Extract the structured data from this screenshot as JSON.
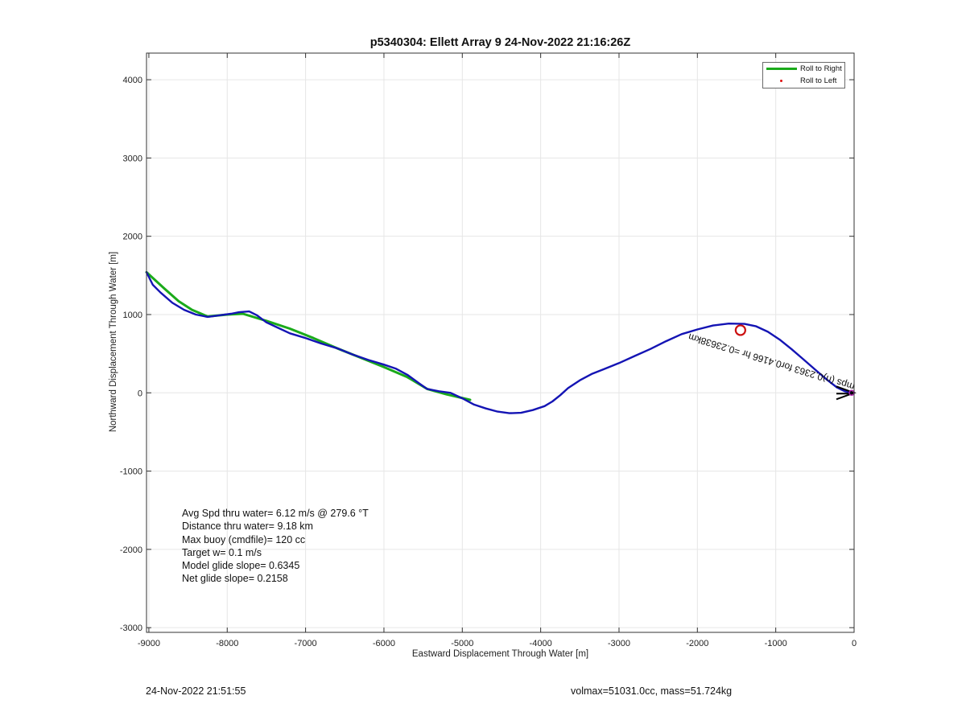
{
  "chart_data": {
    "type": "line",
    "title": "p5340304: Ellett Array 9 24-Nov-2022 21:16:26Z",
    "xlabel": "Eastward Displacement Through Water [m]",
    "ylabel": "Northward Displacement Through Water [m]",
    "xlim": [
      -9030,
      0
    ],
    "ylim": [
      -3060,
      4340
    ],
    "xticks": [
      -9000,
      -8000,
      -7000,
      -6000,
      -5000,
      -4000,
      -3000,
      -2000,
      -1000,
      0
    ],
    "yticks": [
      -3000,
      -2000,
      -1000,
      0,
      1000,
      2000,
      3000,
      4000
    ],
    "grid": true,
    "legend_position": "top-right",
    "legend": [
      {
        "label": "Roll to Right",
        "color": "#1aaa1a",
        "marker": "line"
      },
      {
        "label": "Roll to Left",
        "color": "#e01010",
        "marker": "dot"
      }
    ],
    "series": [
      {
        "name": "Roll to Right",
        "color": "#1aaa1a",
        "x": [
          -9030,
          -8800,
          -8620,
          -8450,
          -8250,
          -8000,
          -7800,
          -7500,
          -7200,
          -6900,
          -6600,
          -6300,
          -6000,
          -5700,
          -5450,
          -5200,
          -4900
        ],
        "y": [
          1540,
          1330,
          1170,
          1060,
          975,
          1000,
          1010,
          920,
          820,
          700,
          570,
          450,
          330,
          200,
          50,
          -20,
          -90
        ]
      },
      {
        "name": "track",
        "color": "#1414b4",
        "x": [
          -9030,
          -8950,
          -8850,
          -8700,
          -8550,
          -8400,
          -8250,
          -8100,
          -7950,
          -7850,
          -7720,
          -7620,
          -7500,
          -7350,
          -7200,
          -7000,
          -6800,
          -6600,
          -6400,
          -6200,
          -6000,
          -5850,
          -5700,
          -5550,
          -5450,
          -5300,
          -5150,
          -5000,
          -4850,
          -4700,
          -4550,
          -4400,
          -4250,
          -4100,
          -3950,
          -3850,
          -3750,
          -3650,
          -3500,
          -3350,
          -3200,
          -3000,
          -2800,
          -2600,
          -2400,
          -2200,
          -2000,
          -1800,
          -1600,
          -1400,
          -1250,
          -1100,
          -950,
          -800,
          -650,
          -500,
          -350,
          -220,
          -120,
          -40,
          0
        ],
        "y": [
          1540,
          1380,
          1280,
          1150,
          1060,
          1000,
          970,
          990,
          1010,
          1030,
          1040,
          990,
          900,
          830,
          760,
          700,
          630,
          570,
          490,
          420,
          360,
          310,
          230,
          120,
          50,
          20,
          0,
          -70,
          -150,
          -200,
          -240,
          -260,
          -255,
          -220,
          -170,
          -110,
          -30,
          60,
          160,
          240,
          300,
          380,
          470,
          560,
          660,
          750,
          810,
          860,
          885,
          880,
          850,
          780,
          680,
          560,
          430,
          300,
          170,
          70,
          20,
          0,
          0
        ]
      }
    ],
    "markers": [
      {
        "label": "target",
        "type": "circle",
        "color": "#cc1010",
        "x": -1450,
        "y": 800
      }
    ],
    "annotation": {
      "text": "mps (n)0.2363 for0.4166 hr =0.23638km",
      "color": "#111"
    },
    "stats": [
      "Avg Spd thru water=  6.12 m/s @ 279.6 °T",
      "Distance thru water=  9.18 km",
      "Max buoy (cmdfile)= 120 cc",
      "Target w= 0.1 m/s",
      "Model glide slope= 0.6345",
      "Net glide slope= 0.2158"
    ]
  },
  "footer": {
    "timestamp": "24-Nov-2022 21:51:55",
    "volmax_mass": "volmax=51031.0cc, mass=51.724kg"
  }
}
